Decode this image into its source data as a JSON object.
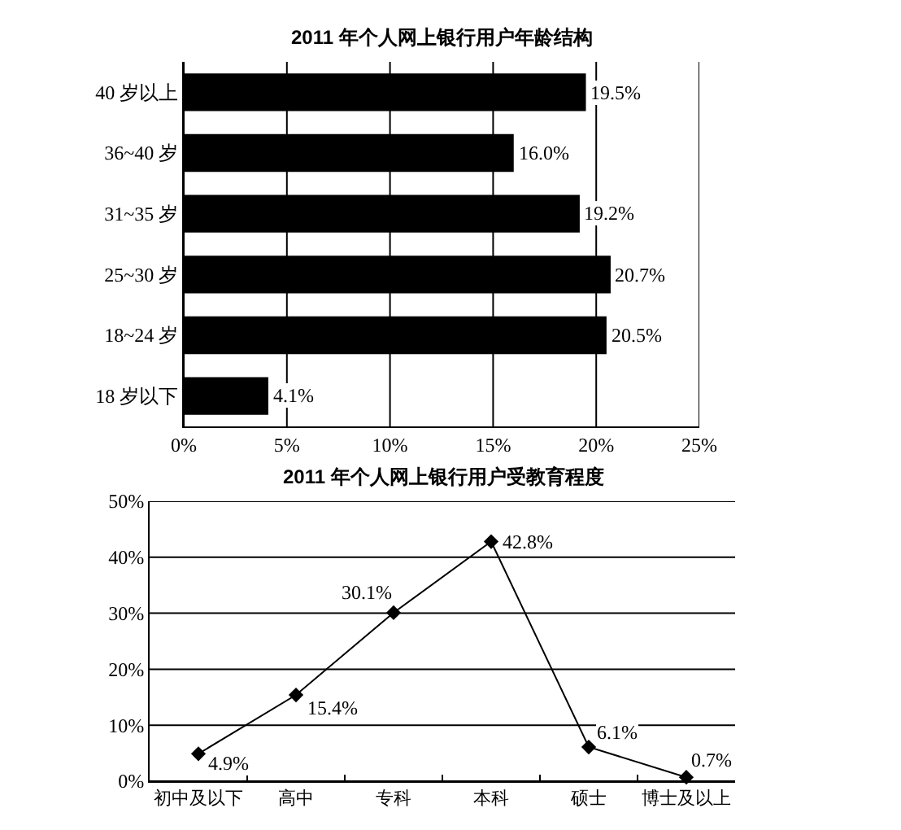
{
  "chart_data": [
    {
      "type": "bar",
      "orientation": "horizontal",
      "title": "2011 年个人网上银行用户年龄结构",
      "categories": [
        "40 岁以上",
        "36~40 岁",
        "31~35 岁",
        "25~30 岁",
        "18~24 岁",
        "18 岁以下"
      ],
      "values": [
        19.5,
        16.0,
        19.2,
        20.7,
        20.5,
        4.1
      ],
      "value_labels": [
        "19.5%",
        "16.0%",
        "19.2%",
        "20.7%",
        "20.5%",
        "4.1%"
      ],
      "color": "#000000",
      "xlim": [
        0,
        25
      ],
      "xticks": [
        {
          "value": 0,
          "label": "0%"
        },
        {
          "value": 5,
          "label": "5%"
        },
        {
          "value": 10,
          "label": "10%"
        },
        {
          "value": 15,
          "label": "15%"
        },
        {
          "value": 20,
          "label": "20%"
        },
        {
          "value": 25,
          "label": "25%"
        }
      ],
      "grid": "x"
    },
    {
      "type": "line",
      "title": "2011 年个人网上银行用户受教育程度",
      "categories": [
        "初中及以下",
        "高中",
        "专科",
        "本科",
        "硕士",
        "博士及以上"
      ],
      "values": [
        4.9,
        15.4,
        30.1,
        42.8,
        6.1,
        0.7
      ],
      "value_labels": [
        "4.9%",
        "15.4%",
        "30.1%",
        "42.8%",
        "6.1%",
        "0.7%"
      ],
      "color": "#000000",
      "marker": "diamond",
      "line_style": "solid",
      "ylim": [
        0,
        50
      ],
      "yticks": [
        {
          "value": 0,
          "label": "0%"
        },
        {
          "value": 10,
          "label": "10%"
        },
        {
          "value": 20,
          "label": "20%"
        },
        {
          "value": 30,
          "label": "30%"
        },
        {
          "value": 40,
          "label": "40%"
        },
        {
          "value": 50,
          "label": "50%"
        }
      ],
      "grid": "y"
    }
  ]
}
